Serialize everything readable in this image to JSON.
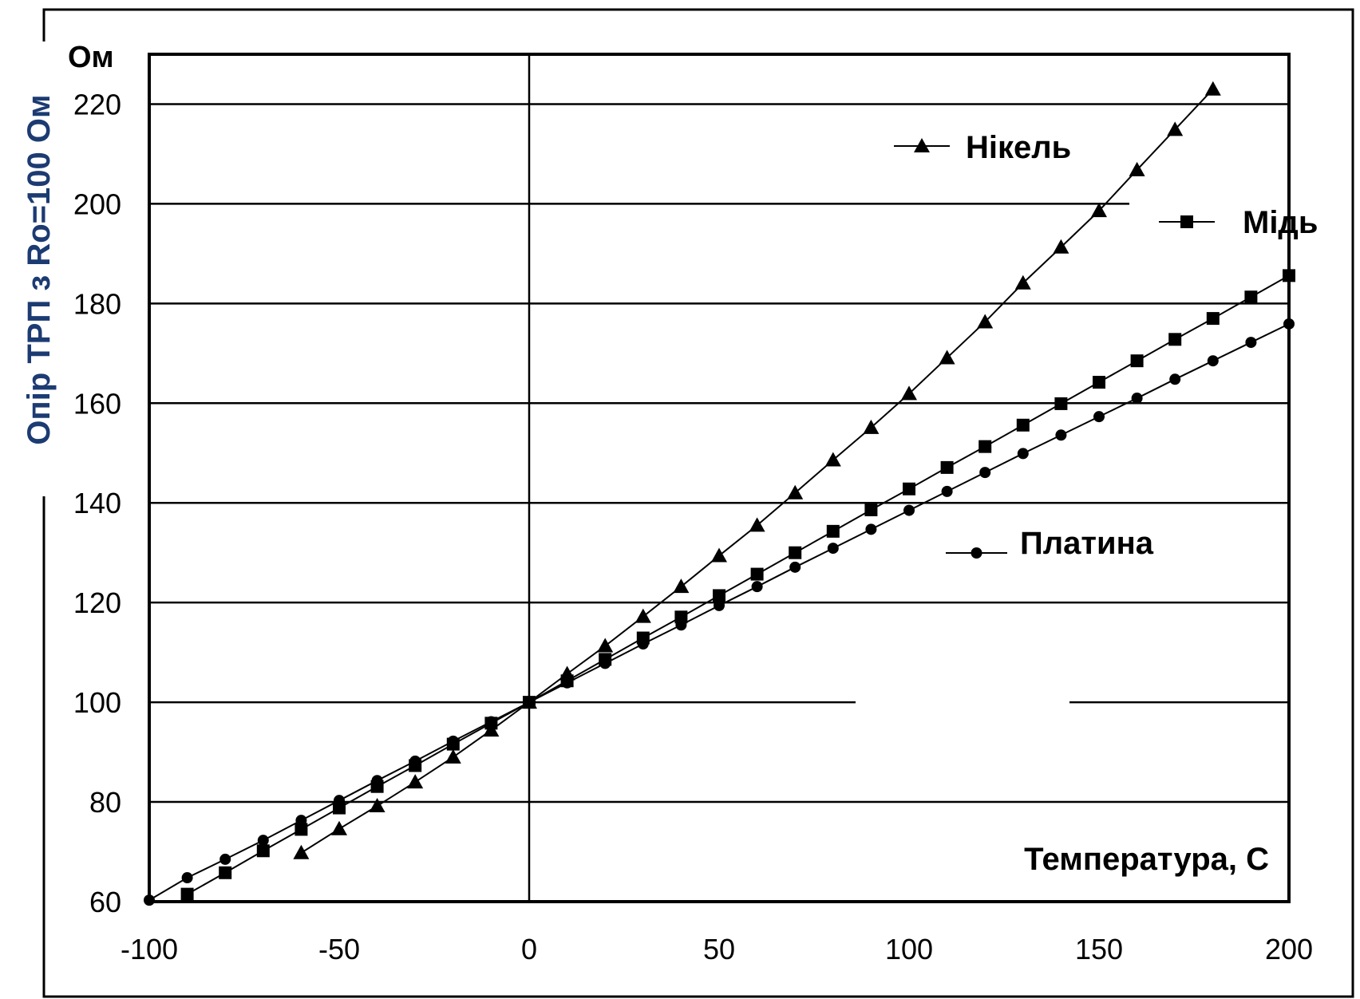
{
  "chart_data": {
    "type": "line",
    "y_unit_label": "Ом",
    "ylabel": "Опір ТРП з Ro=100 Ом",
    "xlabel": "Температура, С",
    "xlim": [
      -100,
      200
    ],
    "ylim": [
      60,
      230
    ],
    "x_ticks": [
      "-100",
      "-50",
      "0",
      "50",
      "100",
      "150",
      "200"
    ],
    "y_ticks": [
      "60",
      "80",
      "100",
      "120",
      "140",
      "160",
      "180",
      "200",
      "220"
    ],
    "grid": true,
    "legend_placement": "inline-right",
    "series": [
      {
        "name": "Нікель",
        "marker": "triangle",
        "x": [
          -60,
          -50,
          -40,
          -30,
          -20,
          -10,
          0,
          10,
          20,
          30,
          40,
          50,
          60,
          70,
          80,
          90,
          100,
          110,
          120,
          130,
          140,
          150,
          160,
          170,
          180
        ],
        "y": [
          69.8,
          74.6,
          79.2,
          84.0,
          89.0,
          94.4,
          100.0,
          105.7,
          111.3,
          117.2,
          123.2,
          129.4,
          135.5,
          142.0,
          148.6,
          155.1,
          161.9,
          169.1,
          176.3,
          184.1,
          191.3,
          198.6,
          206.8,
          214.9,
          223.0
        ]
      },
      {
        "name": "Мідь",
        "marker": "square",
        "x": [
          -90,
          -80,
          -70,
          -60,
          -50,
          -40,
          -30,
          -20,
          -10,
          0,
          10,
          20,
          30,
          40,
          50,
          60,
          70,
          80,
          90,
          100,
          110,
          120,
          130,
          140,
          150,
          160,
          170,
          180,
          190,
          200
        ],
        "y": [
          61.5,
          65.8,
          70.2,
          74.5,
          78.8,
          83.1,
          87.3,
          91.6,
          95.8,
          100.0,
          104.3,
          108.6,
          112.9,
          117.1,
          121.4,
          125.7,
          130.0,
          134.3,
          138.6,
          142.8,
          147.1,
          151.3,
          155.6,
          159.9,
          164.2,
          168.5,
          172.8,
          177.0,
          181.3,
          185.6
        ]
      },
      {
        "name": "Платина",
        "marker": "circle",
        "x": [
          -100,
          -90,
          -80,
          -70,
          -60,
          -50,
          -40,
          -30,
          -20,
          -10,
          0,
          10,
          20,
          30,
          40,
          50,
          60,
          70,
          80,
          90,
          100,
          110,
          120,
          130,
          140,
          150,
          160,
          170,
          180,
          190,
          200
        ],
        "y": [
          60.3,
          64.8,
          68.5,
          72.3,
          76.3,
          80.3,
          84.3,
          88.2,
          92.2,
          96.1,
          100.0,
          103.9,
          107.8,
          111.7,
          115.5,
          119.4,
          123.2,
          127.1,
          130.9,
          134.7,
          138.5,
          142.3,
          146.1,
          149.9,
          153.6,
          157.3,
          161.0,
          164.8,
          168.5,
          172.2,
          175.9
        ]
      }
    ]
  }
}
